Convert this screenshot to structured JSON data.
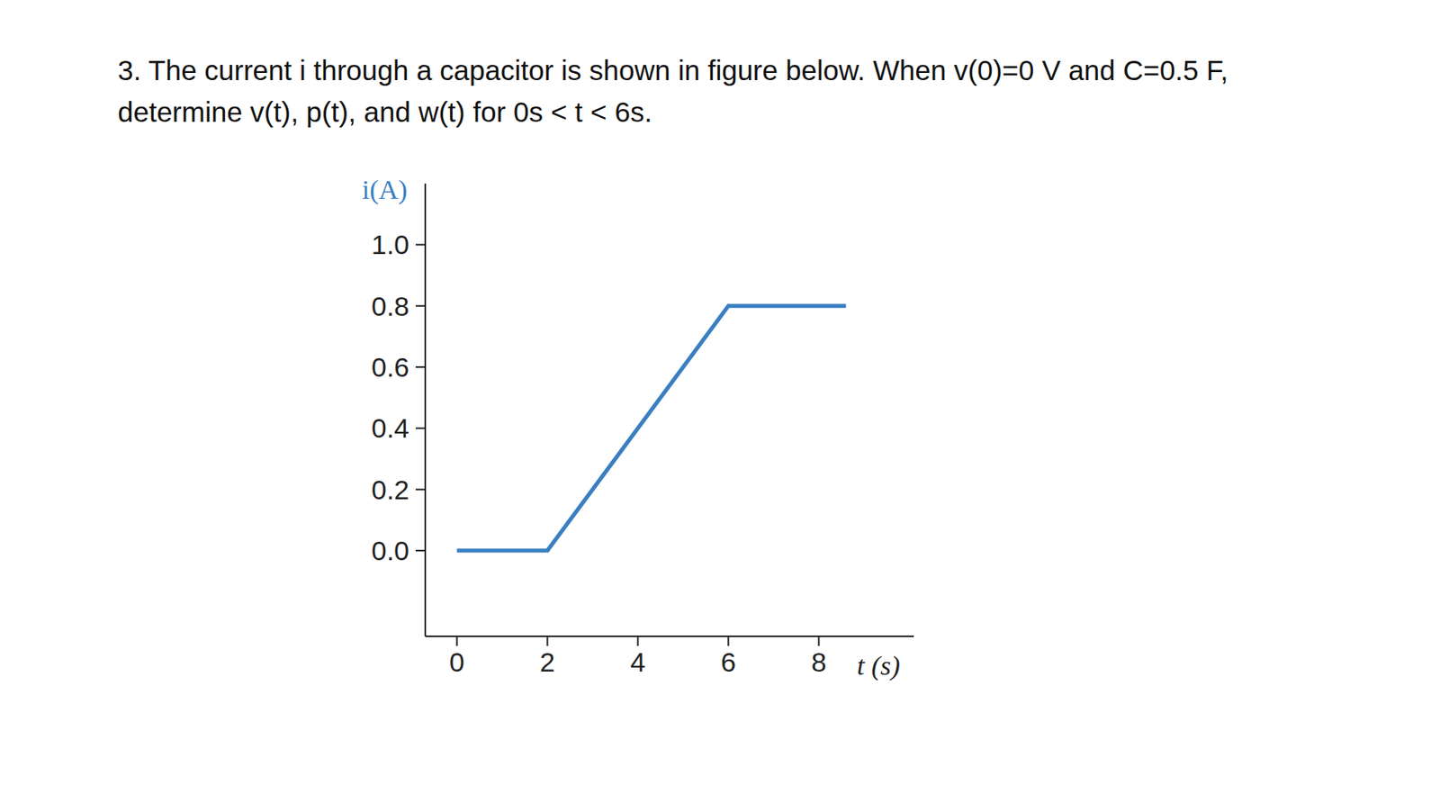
{
  "problem": {
    "lines": [
      "3. The current i through a capacitor is shown in figure below. When v(0)=0 V and C=0.5 F,",
      "determine v(t), p(t), and w(t) for 0s < t < 6s."
    ]
  },
  "chart_data": {
    "type": "line",
    "y_label": "i(A)",
    "x_label": "t (s)",
    "x": [
      0,
      2,
      6,
      8.6
    ],
    "values": [
      0,
      0,
      0.8,
      0.8
    ],
    "color": "#3a7fc1",
    "xlim": [
      -0.7,
      10.1
    ],
    "xticks": [
      0,
      2,
      4,
      6,
      8
    ],
    "ylim": [
      -0.28,
      1.2
    ],
    "yticks": [
      {
        "value": 0,
        "label": "0.0"
      },
      {
        "value": 0.2,
        "label": "0.2"
      },
      {
        "value": 0.4,
        "label": "0.4"
      },
      {
        "value": 0.6,
        "label": "0.6"
      },
      {
        "value": 0.8,
        "label": "0.8"
      },
      {
        "value": 1,
        "label": "1.0"
      }
    ],
    "grid": false
  }
}
